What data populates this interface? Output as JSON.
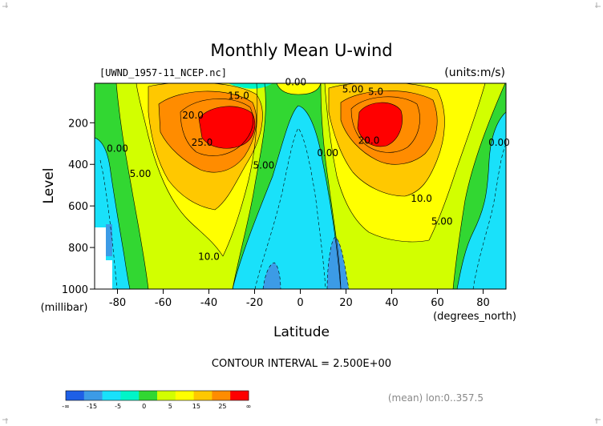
{
  "chart_data": {
    "type": "contour",
    "title": "Monthly Mean U-wind",
    "file_label": "[UWND_1957-11_NCEP.nc]",
    "units_label": "(units:m/s)",
    "xlabel": "Latitude",
    "x_units": "(degrees_north)",
    "ylabel": "Level",
    "y_units": "(millibar)",
    "xlim": [
      -90,
      90
    ],
    "ylim": [
      1000,
      10
    ],
    "x_ticks": [
      -80,
      -60,
      -40,
      -20,
      0,
      20,
      40,
      60,
      80
    ],
    "y_ticks": [
      200,
      400,
      600,
      800,
      1000
    ],
    "contour_interval_text": "CONTOUR INTERVAL = 2.500E+00",
    "footer_note": "(mean) lon:0..357.5",
    "jets": [
      {
        "lat": -33,
        "level": 200,
        "max": 27.5
      },
      {
        "lat": 30,
        "level": 175,
        "max": 27.5
      }
    ],
    "contour_labels": [
      {
        "text": "0.00",
        "lat": -2,
        "level": 20
      },
      {
        "text": "15.0",
        "lat": -27,
        "level": 85
      },
      {
        "text": "5.00",
        "lat": 23,
        "level": 55
      },
      {
        "text": "5.0",
        "lat": 33,
        "level": 65
      },
      {
        "text": "20.0",
        "lat": -47,
        "level": 180
      },
      {
        "text": "25.0",
        "lat": -43,
        "level": 310
      },
      {
        "text": "0.00",
        "lat": -80,
        "level": 340
      },
      {
        "text": "5.00",
        "lat": -70,
        "level": 460
      },
      {
        "text": "5.00",
        "lat": -16,
        "level": 420
      },
      {
        "text": "10.0",
        "lat": -40,
        "level": 860
      },
      {
        "text": "0.00",
        "lat": 12,
        "level": 360
      },
      {
        "text": "20.0",
        "lat": 30,
        "level": 300
      },
      {
        "text": "10.0",
        "lat": 53,
        "level": 580
      },
      {
        "text": "5.00",
        "lat": 62,
        "level": 690
      },
      {
        "text": "0.00",
        "lat": 87,
        "level": 310
      }
    ],
    "colorbar": {
      "colors": [
        "#1e5fe6",
        "#3c9be6",
        "#19e1fa",
        "#00f5c8",
        "#32d732",
        "#d2ff00",
        "#ffff00",
        "#ffc800",
        "#ff8c00",
        "#ff0000"
      ],
      "tick_labels": [
        "-∞",
        "-15",
        "-5",
        "0",
        "5",
        "15",
        "25",
        "∞"
      ]
    },
    "legend": "bottom-left"
  }
}
